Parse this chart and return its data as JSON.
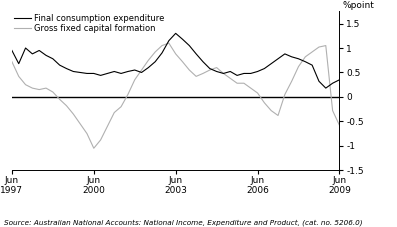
{
  "title": "",
  "ylabel": "%point",
  "ylim": [
    -1.5,
    1.75
  ],
  "yticks": [
    -1.5,
    -1.0,
    -0.5,
    0,
    0.5,
    1.0,
    1.5
  ],
  "source": "Source: Australian National Accounts: National Income, Expenditure and Product, (cat. no. 5206.0)",
  "legend_entries": [
    "Final consumption expenditure",
    "Gross fixed capital formation"
  ],
  "line_colors": [
    "#000000",
    "#b0b0b0"
  ],
  "xtick_labels": [
    "Jun\n1997",
    "Jun\n2000",
    "Jun\n2003",
    "Jun\n2006",
    "Jun\n2009"
  ],
  "xtick_positions": [
    0,
    12,
    24,
    36,
    48
  ],
  "final_consumption": [
    0.95,
    0.68,
    1.0,
    0.88,
    0.95,
    0.85,
    0.78,
    0.65,
    0.58,
    0.52,
    0.5,
    0.48,
    0.48,
    0.44,
    0.48,
    0.52,
    0.48,
    0.52,
    0.55,
    0.5,
    0.6,
    0.72,
    0.9,
    1.15,
    1.3,
    1.18,
    1.05,
    0.88,
    0.72,
    0.58,
    0.52,
    0.48,
    0.52,
    0.44,
    0.48,
    0.48,
    0.52,
    0.58,
    0.68,
    0.78,
    0.88,
    0.82,
    0.78,
    0.72,
    0.65,
    0.32,
    0.18,
    0.28,
    0.35
  ],
  "gross_fixed": [
    0.72,
    0.42,
    0.25,
    0.18,
    0.15,
    0.18,
    0.1,
    -0.05,
    -0.18,
    -0.35,
    -0.55,
    -0.75,
    -1.05,
    -0.88,
    -0.6,
    -0.32,
    -0.2,
    0.05,
    0.35,
    0.55,
    0.75,
    0.92,
    1.05,
    1.1,
    0.88,
    0.72,
    0.55,
    0.42,
    0.48,
    0.55,
    0.6,
    0.48,
    0.38,
    0.28,
    0.28,
    0.18,
    0.08,
    -0.12,
    -0.28,
    -0.38,
    0.05,
    0.32,
    0.62,
    0.82,
    0.92,
    1.02,
    1.05,
    -0.28,
    -0.58
  ]
}
